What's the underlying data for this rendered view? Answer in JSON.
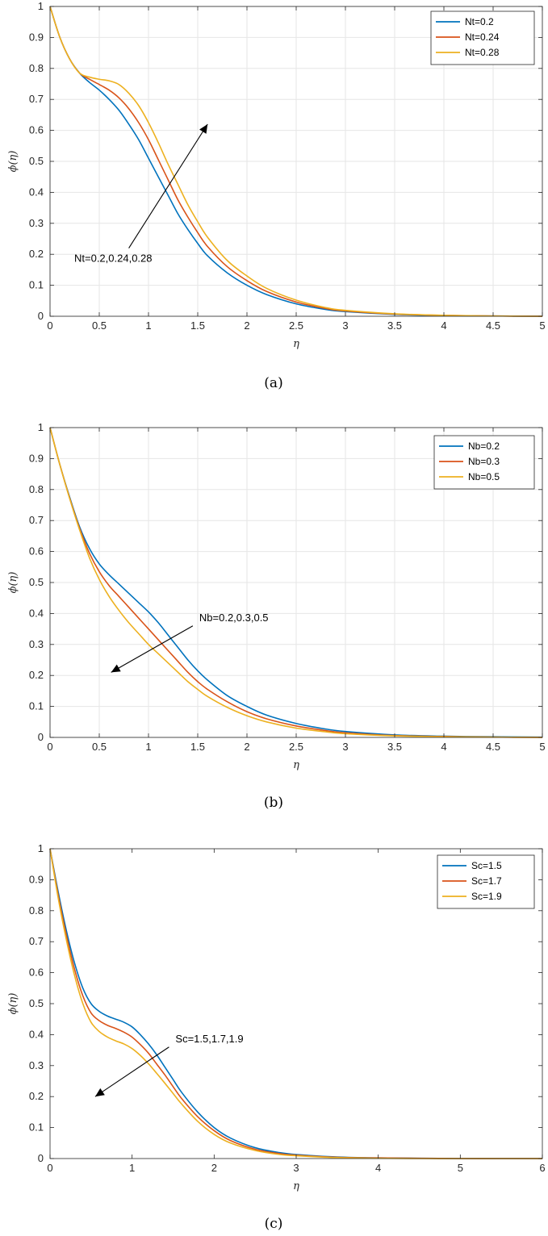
{
  "chart_data": [
    {
      "type": "line",
      "caption": "(a)",
      "xlabel": "η",
      "ylabel": "ϕ(η)",
      "xlim": [
        0,
        5
      ],
      "ylim": [
        0,
        1
      ],
      "xticks": [
        "0",
        "0.5",
        "1",
        "1.5",
        "2",
        "2.5",
        "3",
        "3.5",
        "4",
        "4.5",
        "5"
      ],
      "yticks": [
        "0",
        "0.1",
        "0.2",
        "0.3",
        "0.4",
        "0.5",
        "0.6",
        "0.7",
        "0.8",
        "0.9",
        "1"
      ],
      "grid": true,
      "legend_position": "top-right",
      "annotation": {
        "text": "Nt=0.2,0.24,0.28",
        "arrow": "up-right",
        "from": [
          0.8,
          0.22
        ],
        "to": [
          1.6,
          0.62
        ]
      },
      "x": [
        0,
        0.1,
        0.2,
        0.3,
        0.4,
        0.5,
        0.6,
        0.7,
        0.8,
        0.9,
        1.0,
        1.1,
        1.2,
        1.3,
        1.4,
        1.5,
        1.6,
        1.8,
        2.0,
        2.2,
        2.5,
        2.8,
        3.0,
        3.5,
        4.0,
        4.5,
        5.0
      ],
      "series": [
        {
          "name": "Nt=0.2",
          "color": "#0072BD",
          "values": [
            1.0,
            0.9,
            0.83,
            0.785,
            0.755,
            0.73,
            0.7,
            0.665,
            0.62,
            0.57,
            0.51,
            0.45,
            0.39,
            0.33,
            0.28,
            0.235,
            0.195,
            0.14,
            0.1,
            0.07,
            0.04,
            0.022,
            0.015,
            0.006,
            0.002,
            0.001,
            0.0
          ]
        },
        {
          "name": "Nt=0.24",
          "color": "#D95319",
          "values": [
            1.0,
            0.9,
            0.83,
            0.785,
            0.765,
            0.748,
            0.73,
            0.705,
            0.67,
            0.625,
            0.57,
            0.505,
            0.44,
            0.375,
            0.32,
            0.27,
            0.225,
            0.16,
            0.115,
            0.08,
            0.046,
            0.025,
            0.017,
            0.007,
            0.003,
            0.001,
            0.0
          ]
        },
        {
          "name": "Nt=0.28",
          "color": "#EDB120",
          "values": [
            1.0,
            0.9,
            0.83,
            0.785,
            0.772,
            0.765,
            0.76,
            0.748,
            0.72,
            0.68,
            0.625,
            0.56,
            0.49,
            0.425,
            0.36,
            0.305,
            0.255,
            0.18,
            0.13,
            0.09,
            0.052,
            0.028,
            0.019,
            0.008,
            0.003,
            0.001,
            0.0
          ]
        }
      ]
    },
    {
      "type": "line",
      "caption": "(b)",
      "xlabel": "η",
      "ylabel": "ϕ(η)",
      "xlim": [
        0,
        5
      ],
      "ylim": [
        0,
        1
      ],
      "xticks": [
        "0",
        "0.5",
        "1",
        "1.5",
        "2",
        "2.5",
        "3",
        "3.5",
        "4",
        "4.5",
        "5"
      ],
      "yticks": [
        "0",
        "0.1",
        "0.2",
        "0.3",
        "0.4",
        "0.5",
        "0.6",
        "0.7",
        "0.8",
        "0.9",
        "1"
      ],
      "grid": true,
      "legend_position": "top-right",
      "annotation": {
        "text": "Nb=0.2,0.3,0.5",
        "arrow": "down-left",
        "from": [
          1.45,
          0.36
        ],
        "to": [
          0.62,
          0.21
        ]
      },
      "x": [
        0,
        0.1,
        0.2,
        0.3,
        0.4,
        0.5,
        0.6,
        0.7,
        0.8,
        0.9,
        1.0,
        1.1,
        1.2,
        1.3,
        1.4,
        1.5,
        1.6,
        1.8,
        2.0,
        2.2,
        2.5,
        2.8,
        3.0,
        3.5,
        4.0,
        4.5,
        5.0
      ],
      "series": [
        {
          "name": "Nb=0.2",
          "color": "#0072BD",
          "values": [
            1.0,
            0.88,
            0.775,
            0.68,
            0.61,
            0.56,
            0.525,
            0.495,
            0.465,
            0.435,
            0.405,
            0.37,
            0.33,
            0.29,
            0.25,
            0.215,
            0.185,
            0.135,
            0.1,
            0.072,
            0.045,
            0.027,
            0.019,
            0.008,
            0.004,
            0.002,
            0.001
          ]
        },
        {
          "name": "Nb=0.3",
          "color": "#D95319",
          "values": [
            1.0,
            0.88,
            0.772,
            0.675,
            0.595,
            0.535,
            0.49,
            0.455,
            0.42,
            0.385,
            0.35,
            0.315,
            0.28,
            0.245,
            0.21,
            0.18,
            0.155,
            0.115,
            0.083,
            0.06,
            0.037,
            0.022,
            0.015,
            0.006,
            0.003,
            0.001,
            0.0
          ]
        },
        {
          "name": "Nb=0.5",
          "color": "#EDB120",
          "values": [
            1.0,
            0.88,
            0.77,
            0.67,
            0.58,
            0.51,
            0.455,
            0.41,
            0.37,
            0.335,
            0.3,
            0.27,
            0.24,
            0.21,
            0.18,
            0.155,
            0.132,
            0.097,
            0.07,
            0.05,
            0.03,
            0.018,
            0.012,
            0.005,
            0.002,
            0.001,
            0.0
          ]
        }
      ]
    },
    {
      "type": "line",
      "caption": "(c)",
      "xlabel": "η",
      "ylabel": "ϕ(η)",
      "xlim": [
        0,
        6
      ],
      "ylim": [
        0,
        1
      ],
      "xticks": [
        "0",
        "1",
        "2",
        "3",
        "4",
        "5",
        "6"
      ],
      "yticks": [
        "0",
        "0.1",
        "0.2",
        "0.3",
        "0.4",
        "0.5",
        "0.6",
        "0.7",
        "0.8",
        "0.9",
        "1"
      ],
      "grid": false,
      "legend_position": "top-right",
      "annotation": {
        "text": "Sc=1.5,1.7,1.9",
        "arrow": "down-left",
        "from": [
          1.45,
          0.36
        ],
        "to": [
          0.55,
          0.2
        ]
      },
      "x": [
        0,
        0.1,
        0.2,
        0.3,
        0.4,
        0.5,
        0.6,
        0.7,
        0.8,
        0.9,
        1.0,
        1.1,
        1.2,
        1.3,
        1.4,
        1.5,
        1.6,
        1.8,
        2.0,
        2.2,
        2.5,
        2.8,
        3.0,
        3.5,
        4.0,
        4.5,
        5.0,
        5.5,
        6.0
      ],
      "series": [
        {
          "name": "Sc=1.5",
          "color": "#0072BD",
          "values": [
            1.0,
            0.86,
            0.735,
            0.63,
            0.55,
            0.5,
            0.475,
            0.46,
            0.45,
            0.44,
            0.425,
            0.4,
            0.37,
            0.335,
            0.295,
            0.255,
            0.215,
            0.15,
            0.1,
            0.066,
            0.035,
            0.019,
            0.013,
            0.005,
            0.002,
            0.001,
            0.0,
            0.0,
            0.0
          ]
        },
        {
          "name": "Sc=1.7",
          "color": "#D95319",
          "values": [
            1.0,
            0.85,
            0.72,
            0.61,
            0.525,
            0.47,
            0.445,
            0.43,
            0.42,
            0.408,
            0.392,
            0.368,
            0.34,
            0.305,
            0.27,
            0.232,
            0.195,
            0.135,
            0.09,
            0.058,
            0.03,
            0.016,
            0.011,
            0.004,
            0.002,
            0.001,
            0.0,
            0.0,
            0.0
          ]
        },
        {
          "name": "Sc=1.9",
          "color": "#EDB120",
          "values": [
            1.0,
            0.84,
            0.705,
            0.59,
            0.5,
            0.44,
            0.41,
            0.392,
            0.38,
            0.37,
            0.355,
            0.333,
            0.306,
            0.275,
            0.243,
            0.21,
            0.177,
            0.12,
            0.078,
            0.05,
            0.026,
            0.013,
            0.009,
            0.003,
            0.001,
            0.0,
            0.0,
            0.0,
            0.0
          ]
        }
      ]
    }
  ]
}
